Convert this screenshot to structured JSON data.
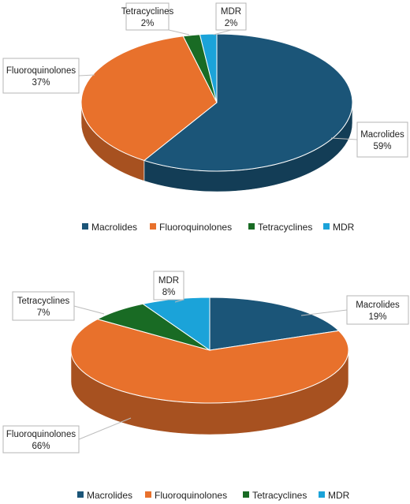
{
  "chart_data": [
    {
      "type": "pie",
      "categories": [
        "Macrolides",
        "Fluoroquinolones",
        "Tetracyclines",
        "MDR"
      ],
      "values": [
        59,
        37,
        2,
        2
      ],
      "data_labels": [
        "59%",
        "37%",
        "2%",
        "2%"
      ],
      "colors": [
        "#1b5578",
        "#e8712c",
        "#196b24",
        "#1ba3d9"
      ],
      "style": "3d",
      "legend": "bottom"
    },
    {
      "type": "pie",
      "categories": [
        "Macrolides",
        "Fluoroquinolones",
        "Tetracyclines",
        "MDR"
      ],
      "values": [
        19,
        66,
        7,
        8
      ],
      "data_labels": [
        "19%",
        "66%",
        "7%",
        "8%"
      ],
      "colors": [
        "#1b5578",
        "#e8712c",
        "#196b24",
        "#1ba3d9"
      ],
      "style": "3d",
      "legend": "bottom"
    }
  ]
}
